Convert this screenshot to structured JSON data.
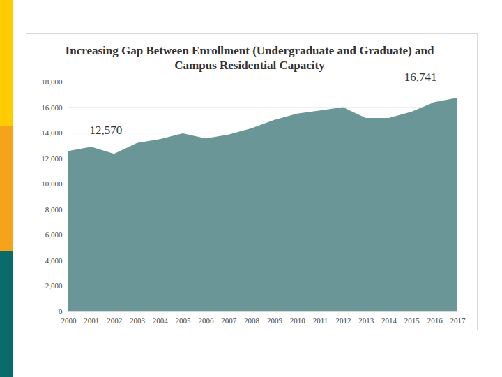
{
  "chart_data": {
    "type": "area",
    "title": "Increasing Gap Between Enrollment (Undergraduate and Graduate) and Campus Residential Capacity",
    "x": [
      2000,
      2001,
      2002,
      2003,
      2004,
      2005,
      2006,
      2007,
      2008,
      2009,
      2010,
      2011,
      2012,
      2013,
      2014,
      2015,
      2016,
      2017
    ],
    "values": [
      12570,
      12900,
      12350,
      13200,
      13500,
      13950,
      13550,
      13850,
      14350,
      15000,
      15500,
      15750,
      16000,
      15150,
      15150,
      15650,
      16400,
      16741
    ],
    "color": "#6a9697",
    "xlim": [
      2000,
      2017
    ],
    "xticks": [
      2000,
      2001,
      2002,
      2003,
      2004,
      2005,
      2006,
      2007,
      2008,
      2009,
      2010,
      2011,
      2012,
      2013,
      2014,
      2015,
      2016,
      2017
    ],
    "ylim": [
      0,
      18000
    ],
    "yticks": [
      0,
      {
        "value": 2000,
        "label": "2,000"
      },
      {
        "value": 4000,
        "label": "4,000"
      },
      {
        "value": 6000,
        "label": "6,000"
      },
      {
        "value": 8000,
        "label": "8,000"
      },
      {
        "value": 10000,
        "label": "10,000"
      },
      {
        "value": 12000,
        "label": "12,000"
      },
      {
        "value": 14000,
        "label": "14,000"
      },
      {
        "value": 16000,
        "label": "16,000"
      },
      {
        "value": 18000,
        "label": "18,000"
      }
    ],
    "annotations": [
      {
        "text": "12,570",
        "x": 2000,
        "y": 12570
      },
      {
        "text": "16,741",
        "x": 2017,
        "y": 16741
      }
    ],
    "grid": true
  }
}
